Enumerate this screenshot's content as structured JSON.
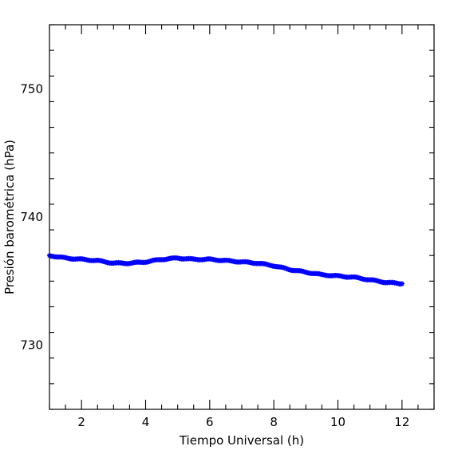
{
  "chart_data": {
    "type": "scatter",
    "title": "",
    "xlabel": "Tiempo Universal (h)",
    "ylabel": "Presión barométrica (hPa)",
    "xlim": [
      1,
      13
    ],
    "ylim": [
      725,
      755
    ],
    "x_ticks_major": [
      2,
      4,
      6,
      8,
      10,
      12
    ],
    "x_ticks_minor_step": 0.5,
    "y_ticks_major": [
      730,
      740,
      750
    ],
    "y_ticks_minor_step": 2,
    "marker": "star",
    "grid": false,
    "colors": {
      "series": "#0000ff",
      "axes": "#000000",
      "background": "#ffffff"
    },
    "series": [
      {
        "name": "",
        "x": [
          1.0,
          1.5,
          2.0,
          2.5,
          3.0,
          3.5,
          4.0,
          4.5,
          5.0,
          5.5,
          6.0,
          6.5,
          7.0,
          7.5,
          8.0,
          8.5,
          9.0,
          9.5,
          10.0,
          10.5,
          11.0,
          11.5,
          12.0
        ],
        "y": [
          737.0,
          736.8,
          736.7,
          736.6,
          736.4,
          736.4,
          736.5,
          736.7,
          736.8,
          736.7,
          736.7,
          736.6,
          736.5,
          736.4,
          736.2,
          735.9,
          735.7,
          735.5,
          735.4,
          735.3,
          735.1,
          734.9,
          734.8
        ]
      }
    ]
  }
}
